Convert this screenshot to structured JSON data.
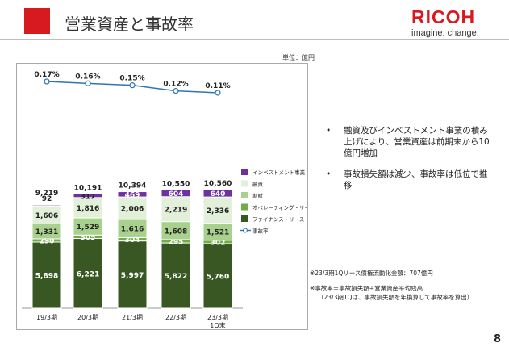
{
  "header": {
    "title": "営業資産と事故率",
    "brand": "RICOH",
    "tagline": "imagine. change."
  },
  "unit_label": "単位：億円",
  "bullets": [
    "融資及びインベストメント事業の積み上げにより、営業資産は前期末から10億円増加",
    "事故損失額は減少、事故率は低位で推移"
  ],
  "notes": {
    "line1": "※23/3期1Qリース債権流動化金額：707億円",
    "line2": "※事故率＝事故損失額÷営業資産平均残高",
    "line3": "（23/3期1Qは、事故損失額を年換算して事故率を算出）"
  },
  "page_number": "8",
  "chart_data": {
    "type": "bar",
    "stacked": true,
    "categories": [
      "19/3期",
      "20/3期",
      "21/3期",
      "22/3期",
      "23/3期"
    ],
    "category_sublabels": [
      "",
      "",
      "",
      "",
      "1Q末"
    ],
    "series": [
      {
        "name": "ファイナンス・リース",
        "values": [
          5898,
          6221,
          5997,
          5822,
          5760
        ],
        "color": "#385723"
      },
      {
        "name": "オペレーティング・リース",
        "values": [
          290,
          305,
          304,
          295,
          302
        ],
        "color": "#70ad47"
      },
      {
        "name": "割賦",
        "values": [
          1331,
          1529,
          1616,
          1608,
          1521
        ],
        "color": "#a9d18e"
      },
      {
        "name": "融資",
        "values": [
          1606,
          1816,
          2006,
          2219,
          2336
        ],
        "color": "#e2f0d9"
      },
      {
        "name": "インベストメント事業",
        "values": [
          92,
          317,
          469,
          604,
          640
        ],
        "color": "#7030a0"
      }
    ],
    "totals": [
      "9,219",
      "10,191",
      "10,394",
      "10,550",
      "10,560"
    ],
    "line_series": {
      "name": "事故率",
      "values": [
        0.17,
        0.16,
        0.15,
        0.12,
        0.11
      ],
      "labels": [
        "0.17%",
        "0.16%",
        "0.15%",
        "0.12%",
        "0.11%"
      ],
      "color": "#2e75b6"
    },
    "value_labels": [
      [
        "5,898",
        "6,221",
        "5,997",
        "5,822",
        "5,760"
      ],
      [
        "290",
        "305",
        "304",
        "295",
        "302"
      ],
      [
        "1,331",
        "1,529",
        "1,616",
        "1,608",
        "1,521"
      ],
      [
        "1,606",
        "1,816",
        "2,006",
        "2,219",
        "2,336"
      ],
      [
        "92",
        "317",
        "469",
        "604",
        "640"
      ]
    ],
    "legend_order": [
      4,
      3,
      2,
      1,
      0
    ],
    "legend_position": "right",
    "grid": false
  }
}
